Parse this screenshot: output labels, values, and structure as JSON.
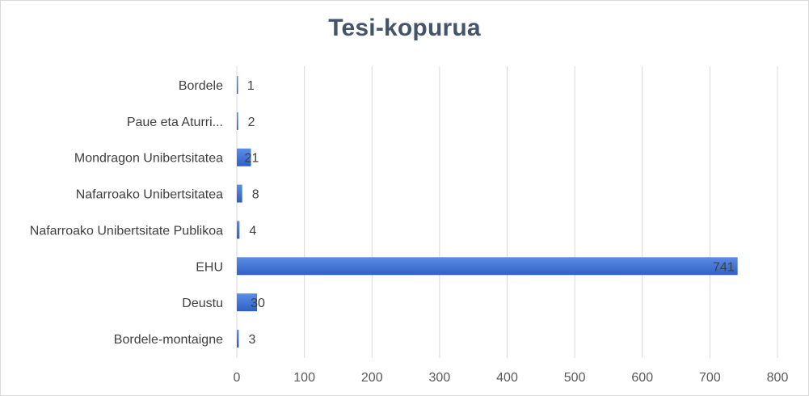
{
  "chart_data": {
    "type": "bar",
    "orientation": "horizontal",
    "title": "Tesi-kopurua",
    "xlabel": "",
    "ylabel": "",
    "categories": [
      "Bordele",
      "Paue eta Aturri...",
      "Mondragon Unibertsitatea",
      "Nafarroako Unibertsitatea",
      "Nafarroako Unibertsitate Publikoa",
      "EHU",
      "Deustu",
      "Bordele-montaigne"
    ],
    "values": [
      1,
      2,
      21,
      8,
      4,
      741,
      30,
      3
    ],
    "xlim": [
      0,
      800
    ],
    "xticks": [
      0,
      100,
      200,
      300,
      400,
      500,
      600,
      700,
      800
    ],
    "grid": "vertical",
    "legend": "none",
    "bar_color_top": "#5b8ee6",
    "bar_color_bottom": "#2f5fc4",
    "grid_color": "#d9d9d9"
  }
}
